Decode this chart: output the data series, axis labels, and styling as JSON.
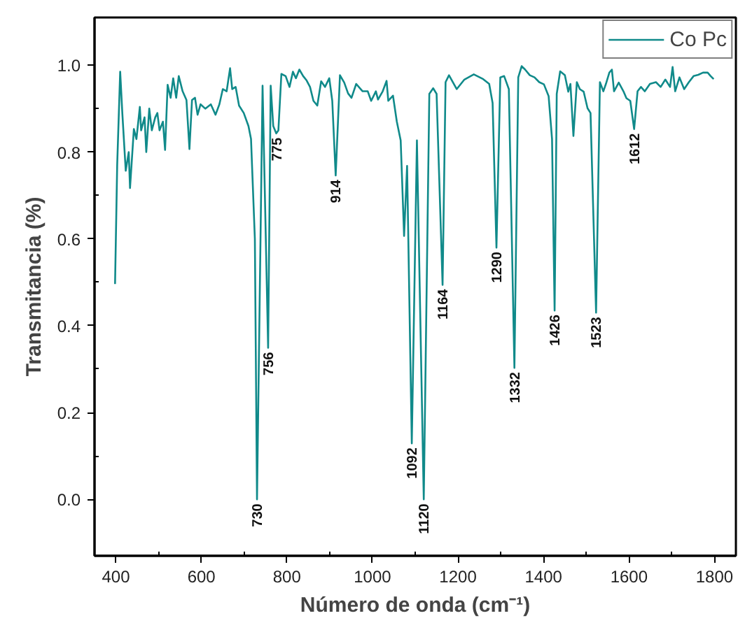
{
  "chart_data": {
    "type": "line",
    "xlabel": "Número de onda (cm⁻¹)",
    "ylabel": "Transmitancia (%)",
    "xlim": [
      350,
      1850
    ],
    "ylim": [
      -0.13,
      1.11
    ],
    "xticks": [
      400,
      600,
      800,
      1000,
      1200,
      1400,
      1600,
      1800
    ],
    "yticks": [
      {
        "value": 0,
        "label": "0.0"
      },
      0.2,
      0.4,
      0.6,
      0.8,
      {
        "value": 1,
        "label": "1.0"
      }
    ],
    "grid": false,
    "legend": "top right",
    "marker": "none",
    "line_style": "solid",
    "series": [
      {
        "name": "Co Pc",
        "color": "#108a8a",
        "x": [
          398,
          403,
          410,
          415,
          423,
          430,
          433,
          442,
          448,
          456,
          459,
          467,
          471,
          478,
          484,
          492,
          497,
          502,
          510,
          515,
          521,
          528,
          534,
          541,
          547,
          556,
          565,
          572,
          578,
          585,
          591,
          598,
          609,
          622,
          633,
          642,
          650,
          659,
          667,
          672,
          680,
          688,
          699,
          710,
          716,
          725,
          730,
          743,
          756,
          762,
          768,
          775,
          780,
          787,
          797,
          806,
          814,
          821,
          829,
          838,
          846,
          854,
          862,
          871,
          880,
          889,
          899,
          906,
          914,
          924,
          934,
          943,
          951,
          962,
          977,
          989,
          997,
          1008,
          1013,
          1024,
          1033,
          1037,
          1048,
          1057,
          1066,
          1074,
          1081,
          1092,
          1104,
          1120,
          1133,
          1142,
          1150,
          1164,
          1171,
          1179,
          1197,
          1215,
          1237,
          1259,
          1273,
          1281,
          1290,
          1299,
          1308,
          1319,
          1332,
          1341,
          1349,
          1357,
          1368,
          1379,
          1390,
          1401,
          1412,
          1420,
          1426,
          1431,
          1439,
          1450,
          1458,
          1463,
          1470,
          1478,
          1485,
          1494,
          1503,
          1510,
          1523,
          1532,
          1540,
          1546,
          1554,
          1560,
          1565,
          1576,
          1587,
          1594,
          1603,
          1612,
          1620,
          1628,
          1637,
          1649,
          1663,
          1674,
          1685,
          1696,
          1702,
          1708,
          1718,
          1729,
          1740,
          1751,
          1762,
          1773,
          1784,
          1791,
          1798
        ],
        "values": [
          0.496,
          0.77,
          0.985,
          0.89,
          0.757,
          0.8,
          0.717,
          0.853,
          0.83,
          0.904,
          0.85,
          0.88,
          0.8,
          0.9,
          0.85,
          0.88,
          0.89,
          0.85,
          0.87,
          0.805,
          0.955,
          0.925,
          0.97,
          0.925,
          0.975,
          0.94,
          0.92,
          0.807,
          0.92,
          0.925,
          0.886,
          0.91,
          0.9,
          0.91,
          0.886,
          0.91,
          0.945,
          0.94,
          0.993,
          0.945,
          0.95,
          0.907,
          0.89,
          0.86,
          0.83,
          0.6,
          0.0,
          0.953,
          0.349,
          0.953,
          0.86,
          0.843,
          0.85,
          0.98,
          0.975,
          0.95,
          0.985,
          0.97,
          0.99,
          0.975,
          0.965,
          0.95,
          0.918,
          0.907,
          0.963,
          0.95,
          0.97,
          0.918,
          0.746,
          0.977,
          0.96,
          0.935,
          0.925,
          0.957,
          0.94,
          0.94,
          0.918,
          0.94,
          0.921,
          0.94,
          0.964,
          0.918,
          0.93,
          0.87,
          0.827,
          0.607,
          0.768,
          0.129,
          0.827,
          0.0,
          0.934,
          0.947,
          0.934,
          0.494,
          0.961,
          0.977,
          0.945,
          0.967,
          0.979,
          0.968,
          0.957,
          0.913,
          0.58,
          0.972,
          0.975,
          0.945,
          0.303,
          0.972,
          0.998,
          0.99,
          0.977,
          0.972,
          0.961,
          0.956,
          0.929,
          0.83,
          0.435,
          0.934,
          0.986,
          0.977,
          0.939,
          0.957,
          0.837,
          0.961,
          0.945,
          0.939,
          0.901,
          0.89,
          0.43,
          0.961,
          0.94,
          0.957,
          0.983,
          0.99,
          0.94,
          0.96,
          0.94,
          0.924,
          0.918,
          0.853,
          0.94,
          0.95,
          0.94,
          0.957,
          0.961,
          0.95,
          0.967,
          0.95,
          0.996,
          0.94,
          0.972,
          0.945,
          0.961,
          0.975,
          0.978,
          0.983,
          0.983,
          0.975,
          0.968
        ]
      }
    ],
    "annotations": [
      {
        "text": "730",
        "x": 730,
        "y": 0.0
      },
      {
        "text": "756",
        "x": 756,
        "y": 0.349
      },
      {
        "text": "775",
        "x": 775,
        "y": 0.843
      },
      {
        "text": "914",
        "x": 914,
        "y": 0.746
      },
      {
        "text": "1092",
        "x": 1092,
        "y": 0.129
      },
      {
        "text": "1120",
        "x": 1120,
        "y": 0.0
      },
      {
        "text": "1164",
        "x": 1164,
        "y": 0.494
      },
      {
        "text": "1290",
        "x": 1290,
        "y": 0.58
      },
      {
        "text": "1332",
        "x": 1332,
        "y": 0.303
      },
      {
        "text": "1426",
        "x": 1426,
        "y": 0.435
      },
      {
        "text": "1523",
        "x": 1523,
        "y": 0.43
      },
      {
        "text": "1612",
        "x": 1612,
        "y": 0.853
      }
    ]
  }
}
